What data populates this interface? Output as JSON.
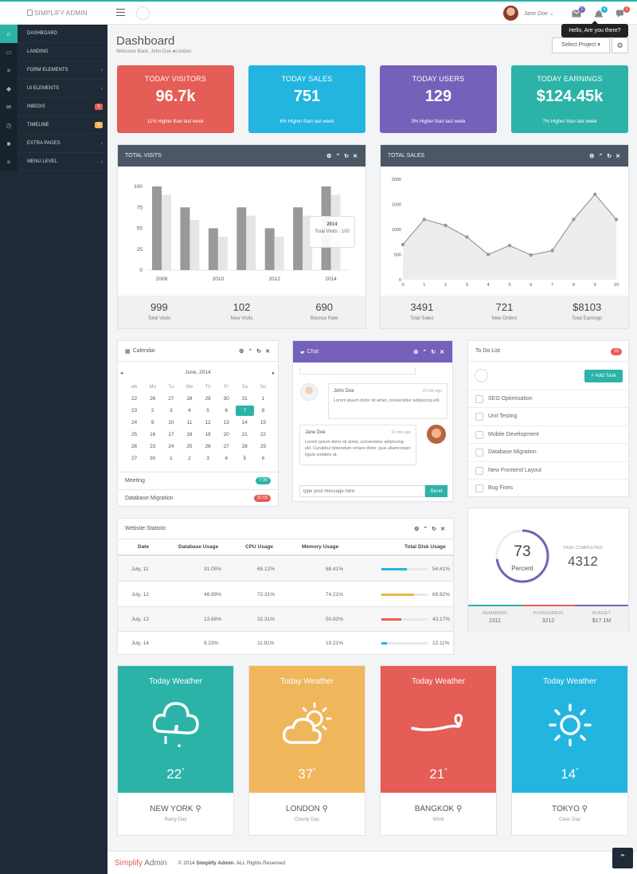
{
  "topbar": {
    "brand": "SIMPLIFY ADMIN",
    "user": "Jane Doe",
    "tooltip": "Hello, Are you there?",
    "msg_count": "2",
    "notif_count": "4",
    "chat_count": "1"
  },
  "sidebar": {
    "items": [
      {
        "label": "DASHBOARD",
        "icon": "home-icon"
      },
      {
        "label": "LANDING",
        "icon": "desktop-icon"
      },
      {
        "label": "FORM ELEMENTS",
        "icon": "list-icon"
      },
      {
        "label": "UI ELEMENTS",
        "icon": "tag-icon"
      },
      {
        "label": "INBOXS",
        "icon": "envelope-icon",
        "badge": "6"
      },
      {
        "label": "TIMELINE",
        "icon": "clock-icon",
        "badge": "5"
      },
      {
        "label": "EXTRA PAGES",
        "icon": "briefcase-icon"
      },
      {
        "label": "MENU LEVEL",
        "icon": "list-icon"
      }
    ]
  },
  "header": {
    "title": "Dashboard",
    "subtitle": "Welcome Back, John Doe",
    "location": "London",
    "select_project": "Select Project"
  },
  "stats": [
    {
      "title": "TODAY VISITORS",
      "value": "96.7k",
      "sub": "11% Higher than last week",
      "color": "#e45d56"
    },
    {
      "title": "TODAY SALES",
      "value": "751",
      "sub": "6% Higher than last week",
      "color": "#22b5e0"
    },
    {
      "title": "TODAY USERS",
      "value": "129",
      "sub": "3% Higher than last week",
      "color": "#7561b9"
    },
    {
      "title": "TODAY EARNINGS",
      "value": "$124.45k",
      "sub": "7% Higher than last week",
      "color": "#2bb3a8"
    }
  ],
  "visits_panel": {
    "title": "TOTAL VISITS",
    "tooltip_title": "2014",
    "tooltip_text": "Total Visits : 100",
    "footer": [
      {
        "value": "999",
        "label": "Total Visits"
      },
      {
        "value": "102",
        "label": "New Visits"
      },
      {
        "value": "690",
        "label": "Bounce Rate"
      }
    ]
  },
  "sales_panel": {
    "title": "TOTAL SALES",
    "footer": [
      {
        "value": "3491",
        "label": "Total Sales"
      },
      {
        "value": "721",
        "label": "New Orders"
      },
      {
        "value": "$8103",
        "label": "Total Earnings"
      }
    ]
  },
  "chart_data": [
    {
      "type": "bar",
      "categories": [
        "2008",
        "2009",
        "2010",
        "2011",
        "2012",
        "2013",
        "2014"
      ],
      "x_tick_labels": [
        "2008",
        "2010",
        "2012",
        "2014"
      ],
      "series": [
        {
          "values": [
            100,
            75,
            50,
            75,
            50,
            75,
            100
          ],
          "color": "#999999"
        },
        {
          "values": [
            90,
            60,
            40,
            65,
            40,
            65,
            90
          ],
          "color": "#e6e6e6"
        }
      ],
      "ylim": [
        0,
        100
      ],
      "yticks": [
        0,
        25,
        50,
        75,
        100
      ]
    },
    {
      "type": "area",
      "x": [
        0,
        1,
        2,
        3,
        4,
        5,
        6,
        7,
        8,
        9,
        10
      ],
      "values": [
        700,
        1200,
        1080,
        850,
        500,
        680,
        490,
        580,
        1200,
        1700,
        1200
      ],
      "ylim": [
        0,
        2000
      ],
      "yticks": [
        0,
        500,
        1000,
        1500,
        2000
      ],
      "color": "#999999"
    }
  ],
  "calendar": {
    "title": "Calendar",
    "month": "June, 2014",
    "dow": [
      "wk",
      "Mo",
      "Tu",
      "We",
      "Th",
      "Fr",
      "Sa",
      "Su"
    ],
    "weeks": [
      [
        "22",
        "26",
        "27",
        "28",
        "29",
        "30",
        "31",
        "1"
      ],
      [
        "23",
        "2",
        "3",
        "4",
        "5",
        "6",
        "7",
        "8"
      ],
      [
        "24",
        "9",
        "10",
        "11",
        "12",
        "13",
        "14",
        "15"
      ],
      [
        "25",
        "16",
        "17",
        "18",
        "19",
        "20",
        "21",
        "22"
      ],
      [
        "26",
        "23",
        "24",
        "25",
        "26",
        "27",
        "28",
        "29"
      ],
      [
        "27",
        "30",
        "1",
        "2",
        "3",
        "4",
        "5",
        "6"
      ]
    ],
    "events": [
      {
        "label": "Meeting",
        "time": "7:30",
        "color": "#2bb3a8"
      },
      {
        "label": "Database Migration",
        "time": "11:15",
        "color": "#e45d56"
      }
    ]
  },
  "chat": {
    "title": "Chat",
    "placeholder": "type your message here",
    "send": "Send",
    "messages": [
      {
        "name": "John Doe",
        "time": "10 min ago",
        "text": "Lorem ipsum dolor sit amet, consectetur adipiscing elit."
      },
      {
        "name": "Jane Doe",
        "time": "15 min ago",
        "text": "Lorem ipsum dolor sit amet, consectetur adipiscing elit. Curabitur bibendum ornare dolor, quis ullamcorper ligula sodales at."
      }
    ]
  },
  "todo": {
    "title": "To Do List",
    "count": "10",
    "add": "Add Task",
    "items": [
      "SEO Optimisation",
      "Unit Testing",
      "Mobile Development",
      "Database Migration",
      "New Frontend Layout",
      "Bug Fixes"
    ]
  },
  "statistic": {
    "title": "Website Statistic",
    "headers": [
      "Date",
      "Database Usage",
      "CPU Usage",
      "Memory Usage",
      "Total Disk Usage"
    ],
    "rows": [
      {
        "date": "July, 11",
        "db": "31.05%",
        "cpu": "65.12%",
        "mem": "88.41%",
        "disk": "54.41%",
        "disk_value": 0.5441,
        "color": "#22b5e0"
      },
      {
        "date": "July, 12",
        "db": "48.99%",
        "cpu": "72.31%",
        "mem": "74.21%",
        "disk": "69.92%",
        "disk_value": 0.6992,
        "color": "#e8b54f"
      },
      {
        "date": "July, 13",
        "db": "13.68%",
        "cpu": "32.31%",
        "mem": "50.82%",
        "disk": "43.17%",
        "disk_value": 0.4317,
        "color": "#e45d56"
      },
      {
        "date": "July, 14",
        "db": "9.23%",
        "cpu": "11.91%",
        "mem": "10.21%",
        "disk": "12.11%",
        "disk_value": 0.1211,
        "color": "#22b5e0"
      }
    ]
  },
  "task": {
    "percent": "73",
    "percent_value": 0.73,
    "percent_label": "Percent",
    "completed_label": "TASK COMPLETED",
    "completed": "4312",
    "footer": [
      {
        "label": "REMAINING",
        "value": "2311"
      },
      {
        "label": "IN PROGRESS",
        "value": "3212"
      },
      {
        "label": "BUDGET",
        "value": "$17.1M"
      }
    ]
  },
  "weather": [
    {
      "title": "Today Weather",
      "temp": "22",
      "city": "NEW YORK",
      "desc": "Rainy Day",
      "color": "#2bb3a8",
      "icon": "cloud-rain-icon"
    },
    {
      "title": "Today Weather",
      "temp": "37",
      "city": "LONDON",
      "desc": "Cloudy Day",
      "color": "#efb65b",
      "icon": "cloud-sun-icon"
    },
    {
      "title": "Today Weather",
      "temp": "21",
      "city": "BANGKOK",
      "desc": "Wind",
      "color": "#e45d56",
      "icon": "wind-icon"
    },
    {
      "title": "Today Weather",
      "temp": "14",
      "city": "TOKYO",
      "desc": "Clear Day",
      "color": "#22b5e0",
      "icon": "sun-icon"
    }
  ],
  "footer": {
    "brand1": "Simplify",
    "brand2": "Admin",
    "copy": "© 2014",
    "copy_brand": "Simplify Admin",
    "rights": ". ALL Rights Reserved"
  }
}
